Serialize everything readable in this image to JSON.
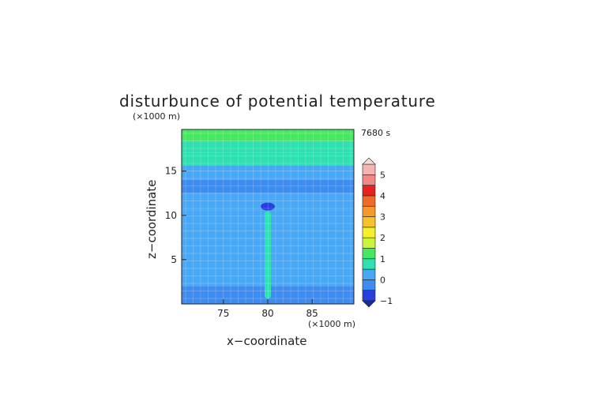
{
  "chart_data": {
    "type": "heatmap",
    "title": "disturbunce of potential temperature",
    "xlabel": "x−coordinate",
    "ylabel": "z−coordinate",
    "x_unit": "(×1000 m)",
    "y_unit": "(×1000 m)",
    "time_label": "7680 s",
    "xlim": [
      70.3,
      89.7
    ],
    "ylim": [
      0,
      19.7
    ],
    "xticks": [
      75,
      80,
      85
    ],
    "yticks": [
      5,
      10,
      15
    ],
    "colorbar": {
      "ticks": [
        5,
        4,
        3,
        2,
        1,
        0,
        -1
      ],
      "levels": [
        -1,
        -0.5,
        0,
        0.5,
        1,
        1.5,
        2,
        2.5,
        3,
        3.5,
        4,
        4.5,
        5
      ],
      "colors": [
        "#2a3ee0",
        "#3f8cf0",
        "#48a8f5",
        "#2fe0b0",
        "#45e860",
        "#c8f53c",
        "#f5f02a",
        "#f5c22a",
        "#f5992a",
        "#f06a2a",
        "#e82020",
        "#f08888",
        "#f5b4b4"
      ],
      "extend": "both"
    },
    "bands": [
      {
        "z": [
          18.4,
          19.7
        ],
        "theta": 1.3
      },
      {
        "z": [
          17.1,
          18.4
        ],
        "theta": 0.9
      },
      {
        "z": [
          15.6,
          17.1
        ],
        "theta": 0.5
      },
      {
        "z": [
          14.0,
          15.6
        ],
        "theta": 0.1
      },
      {
        "z": [
          12.5,
          14.0
        ],
        "theta": -0.3
      },
      {
        "z": [
          10.6,
          12.5
        ],
        "theta": 0.1
      },
      {
        "z": [
          2.0,
          10.6
        ],
        "theta": 0.2
      },
      {
        "z": [
          0,
          2.0
        ],
        "theta": -0.2
      }
    ],
    "plume": {
      "x_center": 80,
      "z_top": 10.5,
      "theta": 0.7
    }
  }
}
